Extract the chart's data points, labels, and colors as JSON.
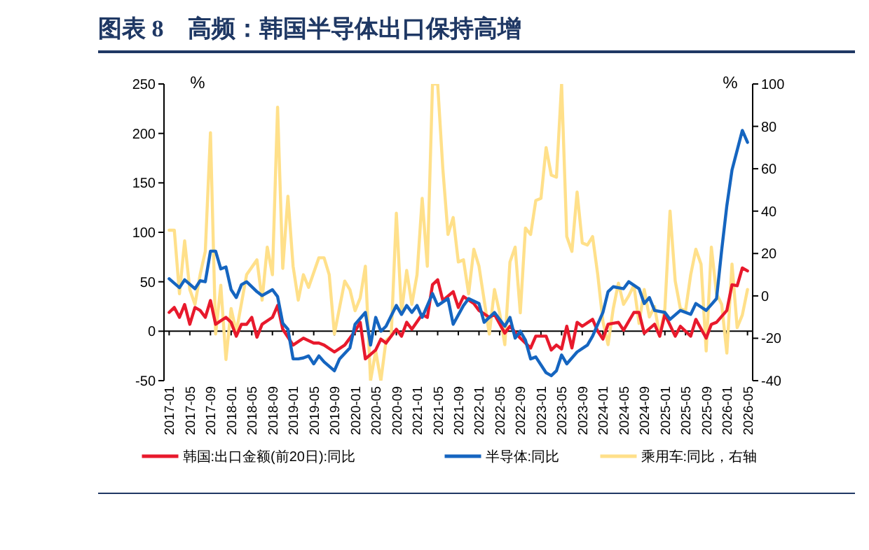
{
  "chart_data": {
    "type": "line",
    "title": "图表 8　高频：韩国半导体出口保持高增",
    "ylabel": "%",
    "y2label": "%",
    "xlim": [
      "2016-12",
      "2026-06"
    ],
    "xticks": [
      "2017-01",
      "2017-05",
      "2017-09",
      "2018-01",
      "2018-05",
      "2018-09",
      "2019-01",
      "2019-05",
      "2019-09",
      "2020-01",
      "2020-05",
      "2020-09",
      "2021-01",
      "2021-05",
      "2021-09",
      "2022-01",
      "2022-05",
      "2022-09",
      "2023-01",
      "2023-05",
      "2023-09",
      "2024-01",
      "2024-05",
      "2024-09",
      "2025-01",
      "2025-05",
      "2025-09",
      "2026-01",
      "2026-05"
    ],
    "ylim": [
      -50,
      250
    ],
    "yticks": [
      -50,
      0,
      50,
      100,
      150,
      200,
      250
    ],
    "y2lim": [
      -40,
      100
    ],
    "y2ticks": [
      -40,
      -20,
      0,
      20,
      40,
      60,
      80,
      100
    ],
    "legend": "bottom",
    "series": [
      {
        "name": "韩国:出口金额(前20日):同比",
        "color": "#e8192c",
        "x": [
          "2017-01",
          "2017-02",
          "2017-03",
          "2017-04",
          "2017-05",
          "2017-06",
          "2017-07",
          "2017-08",
          "2017-09",
          "2017-10",
          "2017-12",
          "2018-01",
          "2018-02",
          "2018-03",
          "2018-04",
          "2018-05",
          "2018-06",
          "2018-07",
          "2018-09",
          "2018-10",
          "2018-11",
          "2019-01",
          "2019-03",
          "2019-05",
          "2019-06",
          "2019-07",
          "2019-09",
          "2019-11",
          "2020-01",
          "2020-02",
          "2020-03",
          "2020-05",
          "2020-06",
          "2020-07",
          "2020-09",
          "2020-10",
          "2020-11",
          "2020-12",
          "2021-02",
          "2021-03",
          "2021-04",
          "2021-05",
          "2021-06",
          "2021-08",
          "2021-09",
          "2021-10",
          "2021-12",
          "2022-01",
          "2022-03",
          "2022-04",
          "2022-06",
          "2022-07",
          "2022-09",
          "2022-11",
          "2022-12",
          "2023-02",
          "2023-03",
          "2023-04",
          "2023-05",
          "2023-06",
          "2023-07",
          "2023-08",
          "2023-09",
          "2023-11",
          "2023-12",
          "2024-01",
          "2024-02",
          "2024-04",
          "2024-05",
          "2024-07",
          "2024-08",
          "2024-09",
          "2024-11",
          "2024-12",
          "2025-01",
          "2025-03",
          "2025-04",
          "2025-06",
          "2025-07",
          "2025-09",
          "2025-10",
          "2025-11",
          "2026-01",
          "2026-02",
          "2026-03",
          "2026-04",
          "2026-05"
        ],
        "values": [
          19,
          24,
          14,
          27,
          7,
          24,
          21,
          14,
          31,
          7,
          14,
          9,
          -5,
          7,
          7,
          14,
          -6,
          7,
          14,
          26,
          2,
          -14,
          -7,
          -12,
          -12,
          -14,
          -21,
          -14,
          0,
          9,
          -28,
          -19,
          -8,
          -12,
          2,
          -5,
          9,
          2,
          17,
          14,
          47,
          52,
          31,
          40,
          24,
          35,
          28,
          21,
          14,
          17,
          -2,
          5,
          -7,
          -17,
          -5,
          -5,
          -19,
          -14,
          -18,
          5,
          -17,
          9,
          5,
          12,
          0,
          -8,
          7,
          9,
          1,
          19,
          19,
          -2,
          7,
          -5,
          17,
          -5,
          5,
          -5,
          12,
          -7,
          7,
          9,
          21,
          47,
          46,
          64,
          61
        ]
      },
      {
        "name": "半导体:同比",
        "color": "#1565c0",
        "x": [
          "2017-01",
          "2017-03",
          "2017-04",
          "2017-06",
          "2017-07",
          "2017-08",
          "2017-09",
          "2017-10",
          "2017-11",
          "2017-12",
          "2018-01",
          "2018-02",
          "2018-03",
          "2018-04",
          "2018-06",
          "2018-07",
          "2018-09",
          "2018-10",
          "2018-11",
          "2018-12",
          "2019-01",
          "2019-02",
          "2019-03",
          "2019-04",
          "2019-05",
          "2019-06",
          "2019-07",
          "2019-09",
          "2019-10",
          "2019-12",
          "2020-01",
          "2020-03",
          "2020-04",
          "2020-05",
          "2020-06",
          "2020-07",
          "2020-09",
          "2020-10",
          "2020-11",
          "2020-12",
          "2021-01",
          "2021-02",
          "2021-04",
          "2021-05",
          "2021-07",
          "2021-08",
          "2021-10",
          "2021-11",
          "2022-01",
          "2022-02",
          "2022-04",
          "2022-06",
          "2022-07",
          "2022-08",
          "2022-09",
          "2022-10",
          "2022-11",
          "2022-12",
          "2023-02",
          "2023-03",
          "2023-04",
          "2023-05",
          "2023-06",
          "2023-08",
          "2023-10",
          "2023-11",
          "2023-12",
          "2024-01",
          "2024-02",
          "2024-03",
          "2024-05",
          "2024-06",
          "2024-08",
          "2024-09",
          "2024-10",
          "2024-11",
          "2025-01",
          "2025-02",
          "2025-04",
          "2025-06",
          "2025-07",
          "2025-09",
          "2025-11",
          "2025-12",
          "2026-01",
          "2026-02",
          "2026-04",
          "2026-05"
        ],
        "values": [
          53,
          44,
          52,
          43,
          51,
          50,
          81,
          81,
          63,
          65,
          42,
          34,
          47,
          50,
          40,
          36,
          42,
          35,
          8,
          2,
          -28,
          -28,
          -27,
          -25,
          -33,
          -25,
          -31,
          -40,
          -28,
          -17,
          7,
          19,
          -14,
          14,
          0,
          5,
          26,
          17,
          26,
          19,
          26,
          14,
          38,
          26,
          33,
          7,
          26,
          33,
          28,
          9,
          19,
          5,
          14,
          -7,
          0,
          -9,
          -28,
          -26,
          -42,
          -45,
          -40,
          -24,
          -33,
          -21,
          -14,
          -5,
          7,
          19,
          40,
          45,
          43,
          50,
          43,
          28,
          34,
          21,
          19,
          12,
          21,
          17,
          28,
          21,
          33,
          82,
          127,
          163,
          203,
          191
        ]
      },
      {
        "name": "乘用车:同比，右轴",
        "color": "#ffe08a",
        "axis": "y2",
        "x": [
          "2017-01",
          "2017-02",
          "2017-03",
          "2017-04",
          "2017-05",
          "2017-06",
          "2017-07",
          "2017-08",
          "2017-09",
          "2017-10",
          "2017-11",
          "2017-12",
          "2018-01",
          "2018-02",
          "2018-04",
          "2018-06",
          "2018-07",
          "2018-08",
          "2018-09",
          "2018-10",
          "2018-11",
          "2018-12",
          "2019-01",
          "2019-02",
          "2019-03",
          "2019-04",
          "2019-06",
          "2019-07",
          "2019-08",
          "2019-09",
          "2019-11",
          "2019-12",
          "2020-01",
          "2020-02",
          "2020-03",
          "2020-04",
          "2020-05",
          "2020-06",
          "2020-07",
          "2020-08",
          "2020-09",
          "2020-10",
          "2020-11",
          "2020-12",
          "2021-01",
          "2021-02",
          "2021-03",
          "2021-04",
          "2021-05",
          "2021-06",
          "2021-07",
          "2021-08",
          "2021-09",
          "2021-10",
          "2021-11",
          "2021-12",
          "2022-01",
          "2022-03",
          "2022-04",
          "2022-05",
          "2022-06",
          "2022-07",
          "2022-08",
          "2022-09",
          "2022-10",
          "2022-11",
          "2022-12",
          "2023-01",
          "2023-02",
          "2023-03",
          "2023-04",
          "2023-05",
          "2023-06",
          "2023-07",
          "2023-08",
          "2023-09",
          "2023-10",
          "2023-11",
          "2023-12",
          "2024-01",
          "2024-02",
          "2024-03",
          "2024-04",
          "2024-05",
          "2024-06",
          "2024-07",
          "2024-08",
          "2024-09",
          "2024-10",
          "2024-11",
          "2024-12",
          "2025-01",
          "2025-02",
          "2025-03",
          "2025-04",
          "2025-05",
          "2025-06",
          "2025-07",
          "2025-08",
          "2025-09",
          "2025-10",
          "2025-11",
          "2025-12",
          "2026-01",
          "2026-02",
          "2026-03",
          "2026-04",
          "2026-05"
        ],
        "values": [
          31,
          31,
          1,
          26,
          3,
          -4,
          10,
          21,
          77,
          -18,
          5,
          -30,
          -6,
          -17,
          10,
          17,
          -2,
          23,
          10,
          89,
          13,
          47,
          14,
          -2,
          10,
          4,
          18,
          18,
          10,
          -18,
          7,
          3,
          -7,
          -1,
          14,
          -40,
          -26,
          -40,
          -21,
          -19,
          39,
          -8,
          12,
          -4,
          10,
          46,
          14,
          100,
          100,
          60,
          29,
          37,
          16,
          17,
          1,
          22,
          14,
          -18,
          3,
          -8,
          -23,
          16,
          23,
          -8,
          32,
          29,
          45,
          46,
          70,
          57,
          56,
          100,
          28,
          21,
          49,
          25,
          24,
          28,
          10,
          -12,
          -23,
          -6,
          6,
          -4,
          0,
          5,
          -13,
          3,
          -10,
          -5,
          -19,
          -6,
          40,
          7,
          -6,
          -7,
          10,
          22,
          15,
          -26,
          23,
          1,
          -4,
          -27,
          15,
          -15,
          -9,
          3
        ]
      }
    ]
  }
}
